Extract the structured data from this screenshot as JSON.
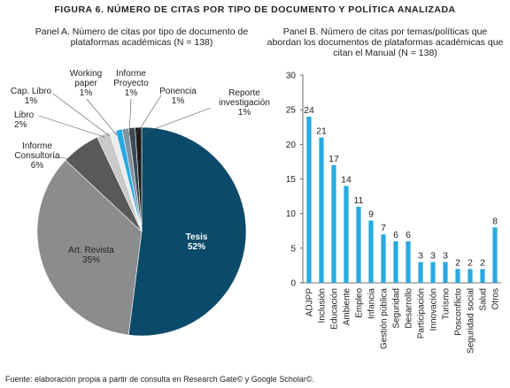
{
  "figure_title": "FIGURA 6. NÚMERO DE CITAS POR TIPO DE DOCUMENTO Y POLÍTICA ANALIZADA",
  "source": "Fuente: elaboración propia a partir de consulta en Research Gate© y Google Scholar©.",
  "chart_data": [
    {
      "type": "pie",
      "title": "Panel A. Número de citas por tipo de documento de plataformas académicas (N = 138)",
      "categories": [
        "Tesis",
        "Art. Revista",
        "Informe Consultoría",
        "Libro",
        "Cap. Libro",
        "Working paper",
        "Informe Proyecto",
        "Ponencia",
        "Reporte investigación"
      ],
      "values": [
        52,
        35,
        6,
        2,
        1,
        1,
        1,
        1,
        1
      ],
      "value_labels": [
        "52%",
        "35%",
        "6%",
        "2%",
        "1%",
        "1%",
        "1%",
        "1%",
        "1%"
      ],
      "colors": [
        "#0b4a6a",
        "#8b8c8e",
        "#58595b",
        "#c9c9c9",
        "#ececec",
        "#27aae1",
        "#7f93a3",
        "#3d4a55",
        "#1a1a1a"
      ]
    },
    {
      "type": "bar",
      "title": "Panel B. Número de citas por temas/políticas que abordan los documentos de plataformas académicas que citan el Manual (N = 138)",
      "categories": [
        "ADJPP",
        "Inclusión",
        "Educación",
        "Ambiente",
        "Empleo",
        "Infancia",
        "Gestión pública",
        "Seguridad",
        "Desarrollo",
        "Participación",
        "Innovación",
        "Turismo",
        "Posconflicto",
        "Seguridad social",
        "Salud",
        "Otros"
      ],
      "values": [
        24,
        21,
        17,
        14,
        11,
        9,
        7,
        6,
        6,
        3,
        3,
        3,
        2,
        2,
        2,
        8
      ],
      "color": "#27aae1",
      "ylim": [
        0,
        30
      ],
      "yticks": [
        0,
        5,
        10,
        15,
        20,
        25,
        30
      ],
      "grid": false
    }
  ]
}
